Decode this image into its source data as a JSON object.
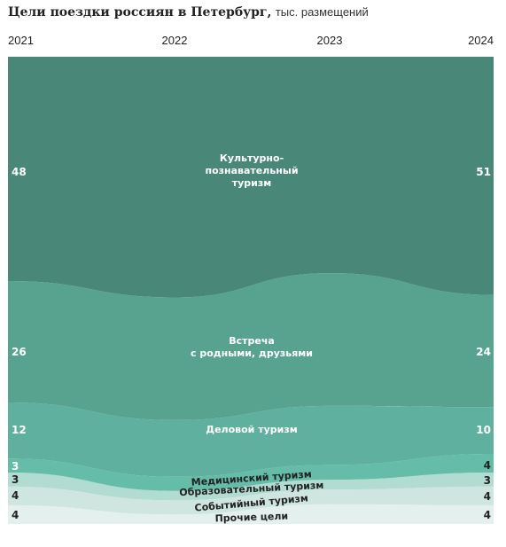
{
  "title": "Цели поездки россиян в Петербург,",
  "unit": "тыс. размещений",
  "chart_data": {
    "type": "area",
    "stacked": true,
    "x": [
      "2021",
      "2022",
      "2023",
      "2024"
    ],
    "series": [
      {
        "name": "Прочие цели",
        "values": [
          4,
          2,
          4,
          4
        ],
        "color": "#e4f0ee"
      },
      {
        "name": "Событийный туризм",
        "values": [
          4,
          3,
          3,
          4
        ],
        "color": "#cfe6e0"
      },
      {
        "name": "Образовательный туризм",
        "values": [
          3,
          2,
          2,
          3
        ],
        "color": "#b2dbd2"
      },
      {
        "name": "Медицинский туризм",
        "values": [
          3,
          3,
          3,
          4
        ],
        "color": "#64bca9"
      },
      {
        "name": "Деловой туризм",
        "values": [
          12,
          12,
          12,
          10
        ],
        "color": "#5fb09e"
      },
      {
        "name": "Встреча\nс родными, друзьями",
        "values": [
          26,
          26,
          27,
          24
        ],
        "color": "#58a38f"
      },
      {
        "name": "Культурно-\nпознавательный\nтуризм",
        "values": [
          48,
          51,
          44,
          51
        ],
        "color": "#498878"
      }
    ],
    "left_labels": [
      "4",
      "4",
      "3",
      "3",
      "12",
      "26",
      "48"
    ],
    "right_labels": [
      "4",
      "4",
      "3",
      "4",
      "10",
      "24",
      "51"
    ],
    "grid": false,
    "legend": "none"
  }
}
